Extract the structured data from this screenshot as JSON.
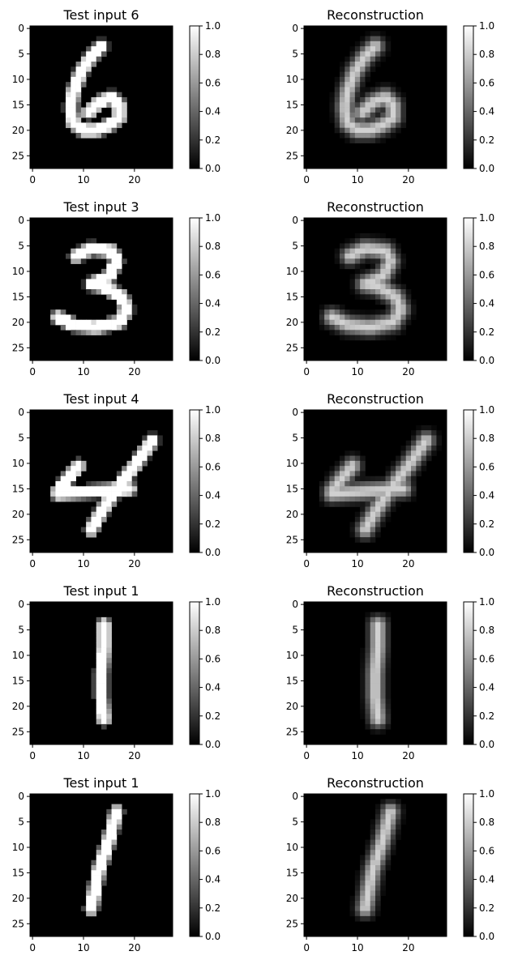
{
  "chart_data": {
    "type": "heatmap",
    "colormap": "gray",
    "image_size": 28,
    "xticks": [
      0,
      10,
      20
    ],
    "yticks": [
      0,
      5,
      10,
      15,
      20,
      25
    ],
    "colorbar_ticks": [
      "0.0",
      "0.2",
      "0.4",
      "0.6",
      "0.8",
      "1.0"
    ],
    "colorbar_range": [
      0,
      1
    ],
    "panels": [
      {
        "title": "Test input 6",
        "digit": 6,
        "kind": "input"
      },
      {
        "title": "Reconstruction",
        "digit": 6,
        "kind": "reconstruction"
      },
      {
        "title": "Test input 3",
        "digit": 3,
        "kind": "input"
      },
      {
        "title": "Reconstruction",
        "digit": 3,
        "kind": "reconstruction"
      },
      {
        "title": "Test input 4",
        "digit": 4,
        "kind": "input"
      },
      {
        "title": "Reconstruction",
        "digit": 4,
        "kind": "reconstruction"
      },
      {
        "title": "Test input 1",
        "digit": 1,
        "kind": "input",
        "variant": "upright"
      },
      {
        "title": "Reconstruction",
        "digit": 1,
        "kind": "reconstruction",
        "variant": "upright"
      },
      {
        "title": "Test input 1",
        "digit": 1,
        "kind": "input",
        "variant": "slanted"
      },
      {
        "title": "Reconstruction",
        "digit": 1,
        "kind": "reconstruction",
        "variant": "slanted"
      }
    ]
  }
}
